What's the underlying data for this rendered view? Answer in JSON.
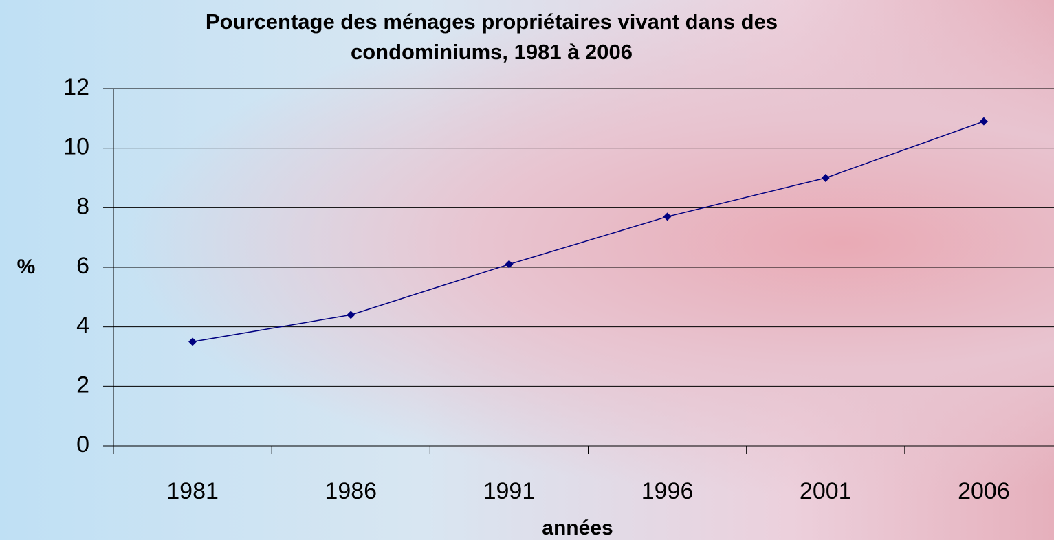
{
  "chart_data": {
    "type": "line",
    "title": "Pourcentage des ménages propriétaires vivant dans des condominiums, 1981 à 2006",
    "x_label": "années",
    "y_label": "%",
    "categories": [
      "1981",
      "1986",
      "1991",
      "1996",
      "2001",
      "2006"
    ],
    "series": [
      {
        "name": "%",
        "color": "#000080",
        "values": [
          3.5,
          4.4,
          6.1,
          7.7,
          9.0,
          10.9
        ]
      }
    ],
    "ylim": [
      0,
      12
    ],
    "yticks": [
      0,
      2,
      4,
      6,
      8,
      10,
      12
    ],
    "grid": true
  }
}
